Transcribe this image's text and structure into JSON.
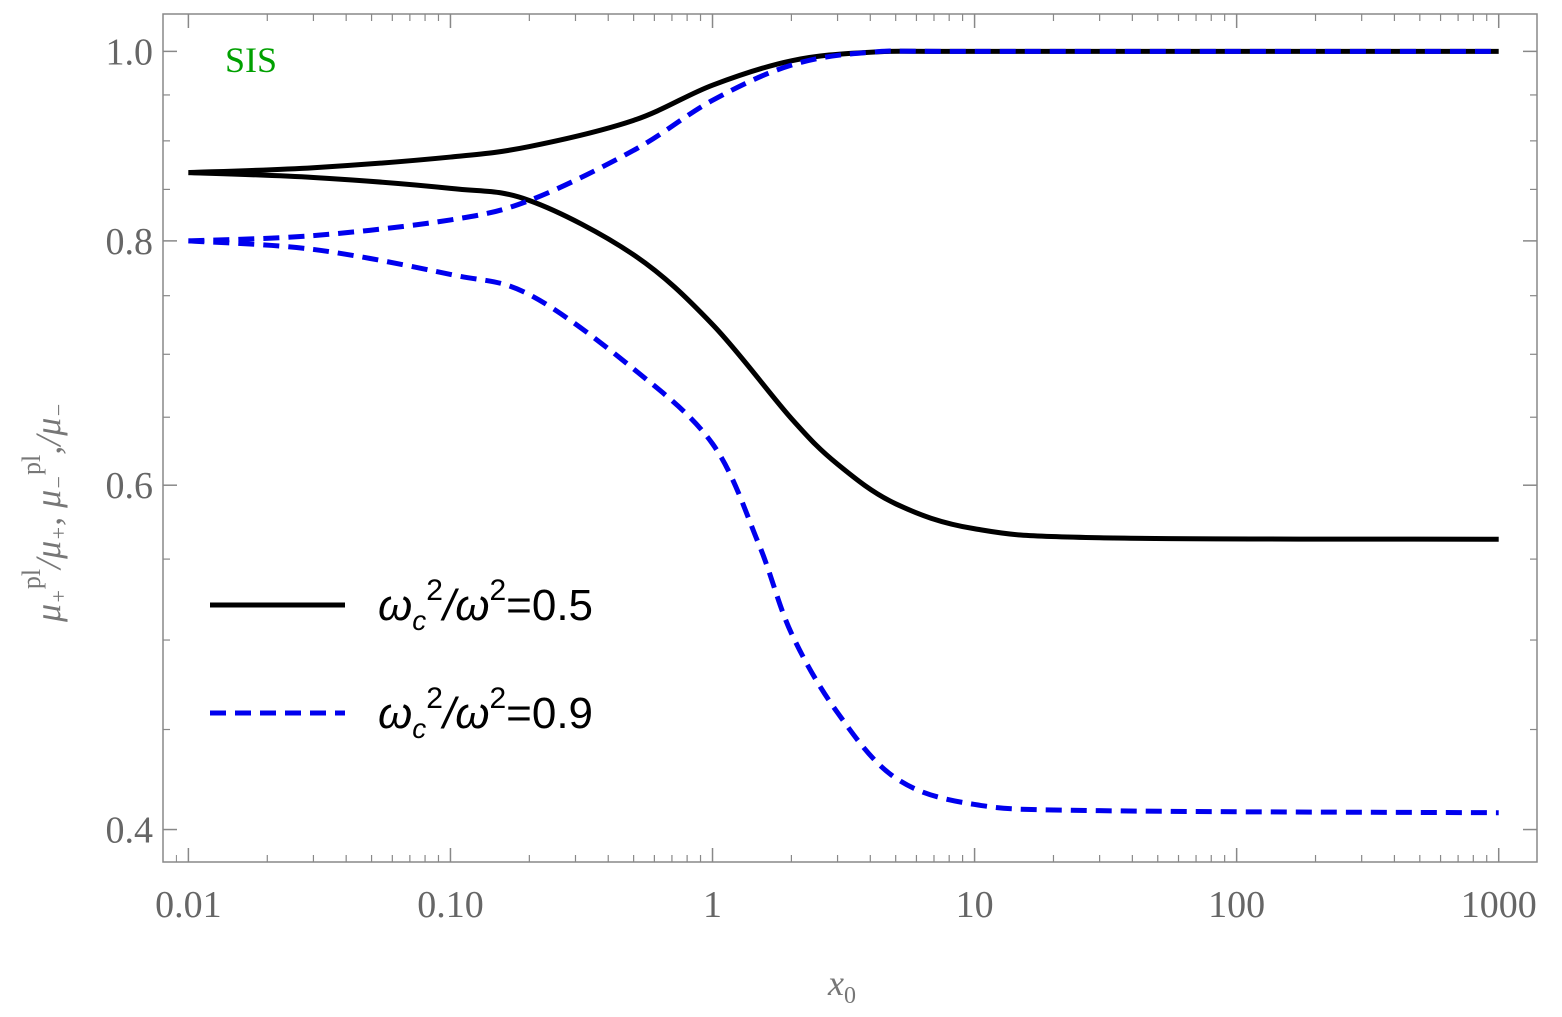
{
  "chart_data": {
    "type": "line",
    "title": "",
    "annotation": "SIS",
    "annotation_color": "#00a000",
    "xlabel": "x",
    "xlabel_sub": "0",
    "ylabel_parts": [
      "μ",
      "+",
      "pl",
      "/μ",
      "+",
      ",  μ",
      "−",
      "pl",
      ",/μ",
      "−"
    ],
    "xscale": "log",
    "yscale": "log",
    "xlim": [
      0.008,
      1400
    ],
    "ylim": [
      0.385,
      1.045
    ],
    "xticks": [
      0.01,
      0.1,
      1,
      10,
      100,
      1000
    ],
    "xtick_labels": [
      "0.01",
      "0.10",
      "1",
      "10",
      "100",
      "1000"
    ],
    "yticks": [
      0.4,
      0.6,
      0.8,
      1.0
    ],
    "ytick_labels": [
      "0.4",
      "0.6",
      "0.8",
      "1.0"
    ],
    "grid": false,
    "legend_position": "center-left",
    "series": [
      {
        "name": "ωc²/ω²=0.5",
        "legend": {
          "w": "ω",
          "c": "c",
          "sq": "2",
          "rest": "/ω",
          "sq2": "2",
          "val": "=0.5"
        },
        "color": "#000000",
        "style": "solid",
        "branch": "upper",
        "x": [
          0.01,
          0.03,
          0.1,
          0.2,
          0.5,
          1,
          2,
          4,
          10,
          1000
        ],
        "y": [
          0.867,
          0.872,
          0.883,
          0.894,
          0.922,
          0.961,
          0.989,
          0.999,
          1.0,
          1.0
        ]
      },
      {
        "name": "ωc²/ω²=0.5",
        "color": "#000000",
        "style": "solid",
        "branch": "lower",
        "x": [
          0.01,
          0.03,
          0.1,
          0.2,
          0.5,
          1,
          2,
          3,
          5,
          10,
          30,
          1000
        ],
        "y": [
          0.867,
          0.862,
          0.851,
          0.839,
          0.787,
          0.725,
          0.649,
          0.615,
          0.587,
          0.57,
          0.564,
          0.563
        ]
      },
      {
        "name": "ωc²/ω²=0.9",
        "legend": {
          "w": "ω",
          "c": "c",
          "sq": "2",
          "rest": "/ω",
          "sq2": "2",
          "val": "=0.9"
        },
        "color": "#0000ee",
        "style": "dashed",
        "branch": "upper",
        "x": [
          0.01,
          0.03,
          0.1,
          0.2,
          0.5,
          1,
          2,
          4,
          10,
          1000
        ],
        "y": [
          0.8,
          0.805,
          0.82,
          0.839,
          0.89,
          0.944,
          0.984,
          0.999,
          1.0,
          1.0
        ]
      },
      {
        "name": "ωc²/ω²=0.9",
        "color": "#0000ee",
        "style": "dashed",
        "branch": "lower",
        "x": [
          0.01,
          0.03,
          0.1,
          0.2,
          0.5,
          1,
          1.5,
          2,
          3,
          5,
          10,
          30,
          1000
        ],
        "y": [
          0.8,
          0.792,
          0.769,
          0.751,
          0.688,
          0.63,
          0.56,
          0.504,
          0.459,
          0.425,
          0.412,
          0.409,
          0.408
        ]
      }
    ]
  }
}
